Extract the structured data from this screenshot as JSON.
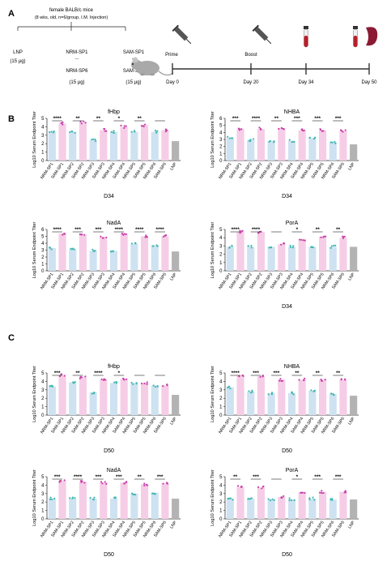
{
  "colors": {
    "nrm": "#cfe2f1",
    "sam": "#f6cde6",
    "lnp": "#b3b3b3",
    "nrm_dot": "#3fb7b3",
    "sam_dot": "#c83fa8",
    "lnp_dot": "#999999",
    "axis": "#222222",
    "timeline": "#333333",
    "blood": "#b81f2a",
    "spleen": "#8b1a33"
  },
  "panels": {
    "a": "A",
    "b": "B",
    "c": "C"
  },
  "schema": {
    "title_line1": "female  BALB/c mice",
    "title_line2": "(8 wks, old, n=6/group, I.M. Injection)",
    "lnp_label": "LNP",
    "lnp_dose": "(15 μg)",
    "nrm_top": "NRM-SP1",
    "nrm_dots": "...",
    "nrm_bottom": "NRM-SP6",
    "nrm_dose": "(15 μg)",
    "sam_top": "SAM-SP1",
    "sam_dots": "...",
    "sam_bottom": "SAM-SP6",
    "sam_dose": "(15 μg)",
    "prime_label": "Prime",
    "boost_label": "Boost",
    "day_labels": [
      "Day 0",
      "Day 20",
      "Day  34",
      "Day 50"
    ]
  },
  "x_tick_labels": [
    "NRM-SP1",
    "SAM-SP1",
    "NRM-SP2",
    "SAM-SP2",
    "NRM-SP3",
    "SAM-SP3",
    "NRM-SP4",
    "SAM-SP4",
    "NRM-SP5",
    "SAM-SP5",
    "NRM-SP6",
    "SAM-SP6",
    "LNP"
  ],
  "chart_data": [
    {
      "type": "bar",
      "title": "fHbp",
      "xlabel": "D34",
      "ylabel": "Log10 Serum Endpoint  Titer",
      "ylim": [
        0,
        5
      ],
      "categories": [
        "NRM-SP1",
        "SAM-SP1",
        "NRM-SP2",
        "SAM-SP2",
        "NRM-SP3",
        "SAM-SP3",
        "NRM-SP4",
        "SAM-SP4",
        "NRM-SP5",
        "SAM-SP5",
        "NRM-SP6",
        "SAM-SP6",
        "LNP"
      ],
      "values": [
        3.4,
        4.4,
        3.4,
        4.5,
        2.4,
        3.6,
        3.4,
        4.0,
        3.4,
        4.2,
        3.4,
        3.6,
        2.3
      ],
      "significance": [
        "****",
        "**",
        "**",
        "*",
        "**",
        ""
      ]
    },
    {
      "type": "bar",
      "title": "NHBA",
      "xlabel": "D34",
      "ylabel": "Log10 Serum Endpoint  Titer",
      "ylim": [
        0,
        6
      ],
      "categories": [
        "NRM-SP1",
        "SAM-SP1",
        "NRM-SP2",
        "SAM-SP2",
        "NRM-SP3",
        "SAM-SP3",
        "NRM-SP4",
        "SAM-SP4",
        "NRM-SP5",
        "SAM-SP5",
        "NRM-SP6",
        "SAM-SP6",
        "LNP"
      ],
      "values": [
        3.2,
        4.5,
        2.9,
        4.5,
        2.8,
        4.6,
        2.8,
        4.3,
        3.2,
        4.3,
        2.6,
        4.2,
        2.3
      ],
      "significance": [
        "***",
        "****",
        "**",
        "***",
        "***",
        "***"
      ]
    },
    {
      "type": "bar",
      "title": "NadA",
      "xlabel": "",
      "ylabel": "Log10 Serum Endpoint  Titer",
      "ylim": [
        0,
        6
      ],
      "categories": [
        "NRM-SP1",
        "SAM-SP1",
        "NRM-SP2",
        "SAM-SP2",
        "NRM-SP3",
        "SAM-SP3",
        "NRM-SP4",
        "SAM-SP4",
        "NRM-SP5",
        "SAM-SP5",
        "NRM-SP6",
        "SAM-SP6",
        "LNP"
      ],
      "values": [
        3.3,
        5.4,
        3.1,
        5.2,
        2.9,
        4.9,
        2.9,
        5.4,
        3.9,
        5.0,
        3.7,
        5.0,
        2.8
      ],
      "significance": [
        "****",
        "***",
        "***",
        "****",
        "****",
        "****"
      ]
    },
    {
      "type": "bar",
      "title": "PorA",
      "xlabel": "D34",
      "ylabel": "Log10 Serum Endpoint  Titer",
      "ylim": [
        0,
        5
      ],
      "categories": [
        "NRM-SP1",
        "SAM-SP1",
        "NRM-SP2",
        "SAM-SP2",
        "NRM-SP3",
        "SAM-SP3",
        "NRM-SP4",
        "SAM-SP4",
        "NRM-SP5",
        "SAM-SP5",
        "NRM-SP6",
        "SAM-SP6",
        "LNP"
      ],
      "values": [
        2.9,
        4.7,
        2.9,
        4.7,
        2.9,
        3.2,
        2.9,
        3.8,
        2.9,
        4.1,
        2.9,
        4.0,
        2.9
      ],
      "significance": [
        "****",
        "****",
        "",
        "*",
        "**",
        "**"
      ]
    },
    {
      "type": "bar",
      "title": "fHbp",
      "xlabel": "D50",
      "ylabel": "Log10 Serum Endpoint  Titer",
      "ylim": [
        0,
        5
      ],
      "categories": [
        "NRM-SP1",
        "SAM-SP1",
        "NRM-SP2",
        "SAM-SP2",
        "NRM-SP3",
        "SAM-SP3",
        "NRM-SP4",
        "SAM-SP4",
        "NRM-SP5",
        "SAM-SP5",
        "NRM-SP6",
        "SAM-SP6",
        "LNP"
      ],
      "values": [
        3.4,
        4.7,
        3.9,
        4.5,
        2.7,
        4.2,
        3.8,
        4.3,
        3.8,
        3.8,
        3.5,
        3.5,
        2.4
      ],
      "significance": [
        "***",
        "**",
        "****",
        "*",
        "",
        ""
      ]
    },
    {
      "type": "bar",
      "title": "NHBA",
      "xlabel": "D50",
      "ylabel": "Log10 Serum Endpoint  Titer",
      "ylim": [
        0,
        5
      ],
      "categories": [
        "NRM-SP1",
        "SAM-SP1",
        "NRM-SP2",
        "SAM-SP2",
        "NRM-SP3",
        "SAM-SP3",
        "NRM-SP4",
        "SAM-SP4",
        "NRM-SP5",
        "SAM-SP5",
        "NRM-SP6",
        "SAM-SP6",
        "LNP"
      ],
      "values": [
        3.3,
        4.7,
        2.8,
        4.6,
        2.6,
        4.2,
        2.6,
        4.2,
        2.9,
        4.2,
        2.5,
        4.2,
        2.3
      ],
      "significance": [
        "****",
        "***",
        "***",
        "**",
        "**",
        "**"
      ]
    },
    {
      "type": "bar",
      "title": "NadA",
      "xlabel": "D50",
      "ylabel": "Log10 Serum Endpoint  Titer",
      "ylim": [
        0,
        5
      ],
      "categories": [
        "NRM-SP1",
        "SAM-SP1",
        "NRM-SP2",
        "SAM-SP2",
        "NRM-SP3",
        "SAM-SP3",
        "NRM-SP4",
        "SAM-SP4",
        "NRM-SP5",
        "SAM-SP5",
        "NRM-SP6",
        "SAM-SP6",
        "LNP"
      ],
      "values": [
        2.4,
        4.5,
        2.4,
        4.4,
        2.4,
        4.3,
        2.4,
        4.3,
        3.0,
        4.1,
        3.1,
        4.2,
        2.4
      ],
      "significance": [
        "***",
        "****",
        "***",
        "***",
        "**",
        "***"
      ]
    },
    {
      "type": "bar",
      "title": "PorA",
      "xlabel": "D50",
      "ylabel": "Log10 Serum Endpoint  Titer",
      "ylim": [
        0,
        5
      ],
      "categories": [
        "NRM-SP1",
        "SAM-SP1",
        "NRM-SP2",
        "SAM-SP2",
        "NRM-SP3",
        "SAM-SP3",
        "NRM-SP4",
        "SAM-SP4",
        "NRM-SP5",
        "SAM-SP5",
        "NRM-SP6",
        "SAM-SP6",
        "LNP"
      ],
      "values": [
        2.4,
        3.8,
        2.4,
        3.7,
        2.3,
        2.6,
        2.3,
        3.2,
        2.4,
        3.2,
        2.3,
        3.2,
        2.3
      ],
      "significance": [
        "**",
        "***",
        "",
        "*",
        "***",
        "***"
      ]
    }
  ]
}
